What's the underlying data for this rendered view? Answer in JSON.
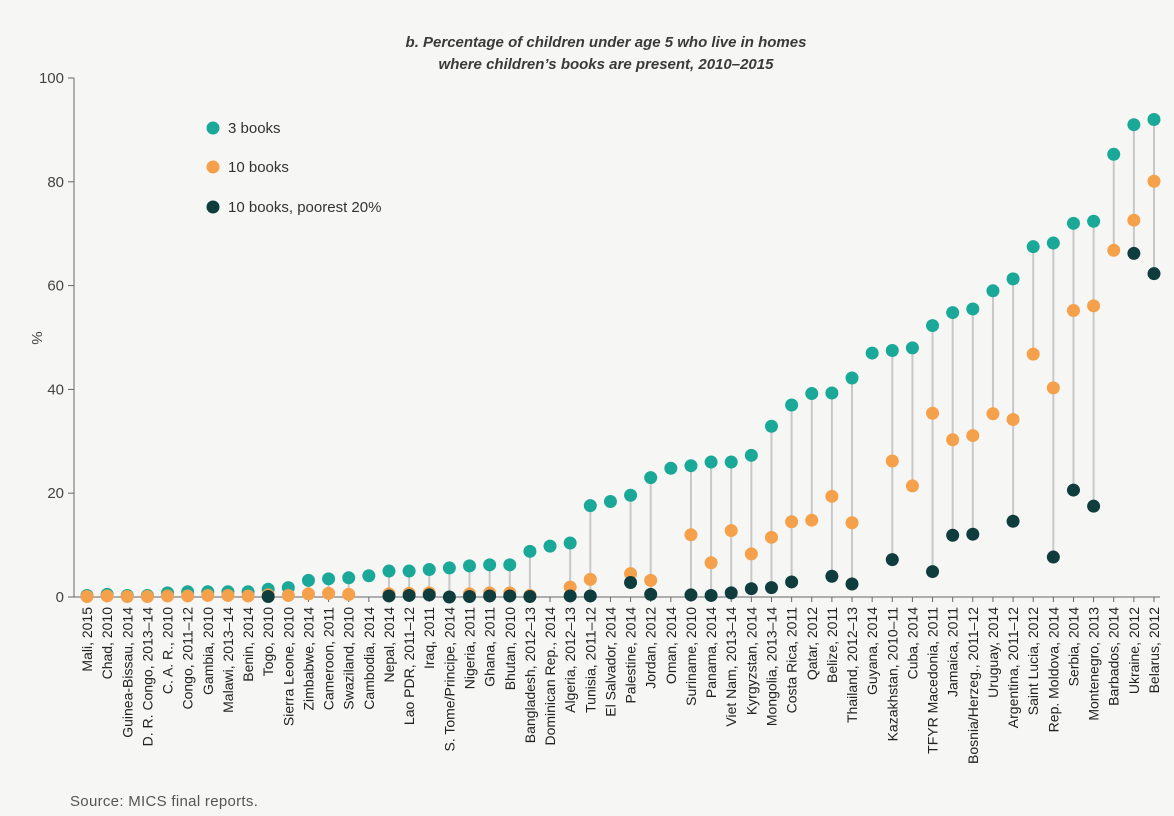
{
  "chart_data": {
    "type": "scatter",
    "title": "b. Percentage of children under age 5 who live in homes",
    "subtitle": "where children’s books are present, 2010–2015",
    "ylabel": "%",
    "xlabel": "",
    "ylim": [
      0,
      100
    ],
    "yticks": [
      0,
      20,
      40,
      60,
      80,
      100
    ],
    "grid": false,
    "legend_position": "top-left",
    "colors": {
      "3 books": "#1aa898",
      "10 books": "#f5a04a",
      "10 books, poorest 20%": "#0f3d3e",
      "connector": "#c8c8c8",
      "axis": "#666666"
    },
    "categories": [
      "Mali, 2015",
      "Chad, 2010",
      "Guinea-Bissau, 2014",
      "D. R. Congo, 2013–14",
      "C. A. R., 2010",
      "Congo, 2011–12",
      "Gambia, 2010",
      "Malawi, 2013–14",
      "Benin, 2014",
      "Togo, 2010",
      "Sierra Leone, 2010",
      "Zimbabwe, 2014",
      "Cameroon, 2011",
      "Swaziland, 2010",
      "Cambodia, 2014",
      "Nepal, 2014",
      "Lao PDR, 2011–12",
      "Iraq, 2011",
      "S. Tome/Principe, 2014",
      "Nigeria, 2011",
      "Ghana, 2011",
      "Bhutan, 2010",
      "Bangladesh, 2012–13",
      "Dominican Rep., 2014",
      "Algeria, 2012–13",
      "Tunisia, 2011–12",
      "El Salvador, 2014",
      "Palestine, 2014",
      "Jordan, 2012",
      "Oman, 2014",
      "Suriname, 2010",
      "Panama, 2014",
      "Viet Nam, 2013–14",
      "Kyrgyzstan, 2014",
      "Mongolia, 2013–14",
      "Costa Rica, 2011",
      "Qatar, 2012",
      "Belize, 2011",
      "Thailand, 2012–13",
      "Guyana, 2014",
      "Kazakhstan, 2010–11",
      "Cuba, 2014",
      "TFYR Macedonia, 2011",
      "Jamaica, 2011",
      "Bosnia/Herzeg., 2011–12",
      "Uruguay, 2014",
      "Argentina, 2011–12",
      "Saint Lucia, 2012",
      "Rep. Moldova, 2014",
      "Serbia, 2014",
      "Montenegro, 2013",
      "Barbados, 2014",
      "Ukraine, 2012",
      "Belarus, 2012"
    ],
    "series": [
      {
        "name": "3 books",
        "values": [
          0.3,
          0.5,
          0.3,
          0.3,
          0.8,
          1,
          1,
          1,
          1,
          1.5,
          1.8,
          3.2,
          3.5,
          3.7,
          4.1,
          5,
          5,
          5.3,
          5.6,
          6,
          6.2,
          6.2,
          8.8,
          9.8,
          10.4,
          17.6,
          18.4,
          19.6,
          23,
          24.8,
          25.3,
          26,
          26,
          27.3,
          32.9,
          37,
          39.2,
          39.3,
          42.2,
          47,
          47.5,
          48,
          52.3,
          54.8,
          55.5,
          59,
          61.3,
          67.5,
          68.2,
          72,
          72.4,
          85.3,
          91,
          92
        ]
      },
      {
        "name": "10 books",
        "values": [
          0.1,
          0.2,
          0.1,
          0.1,
          0.2,
          0.2,
          0.3,
          0.3,
          0.2,
          0.4,
          0.3,
          0.6,
          0.7,
          0.5,
          null,
          0.6,
          0.7,
          0.8,
          null,
          0.6,
          0.8,
          0.8,
          0.3,
          null,
          1.9,
          3.4,
          null,
          4.5,
          3.2,
          null,
          12,
          6.6,
          12.8,
          8.3,
          11.5,
          14.5,
          14.8,
          19.4,
          14.3,
          null,
          26.2,
          21.4,
          35.4,
          30.3,
          31.1,
          35.3,
          34.2,
          46.8,
          40.3,
          55.2,
          56.1,
          66.8,
          72.6,
          80.1
        ]
      },
      {
        "name": "10 books, poorest 20%",
        "values": [
          null,
          null,
          null,
          null,
          null,
          null,
          null,
          null,
          null,
          0.1,
          null,
          null,
          null,
          null,
          null,
          0.2,
          0.3,
          0.4,
          0,
          0.1,
          0.2,
          0.2,
          0.1,
          null,
          0.2,
          0.2,
          null,
          2.8,
          0.5,
          null,
          0.4,
          0.3,
          0.8,
          1.6,
          1.8,
          2.9,
          null,
          4,
          2.5,
          null,
          7.2,
          null,
          4.9,
          11.9,
          12.1,
          null,
          14.6,
          null,
          7.7,
          20.6,
          17.5,
          null,
          66.2,
          62.3
        ]
      }
    ]
  },
  "source": "Source: MICS final reports."
}
